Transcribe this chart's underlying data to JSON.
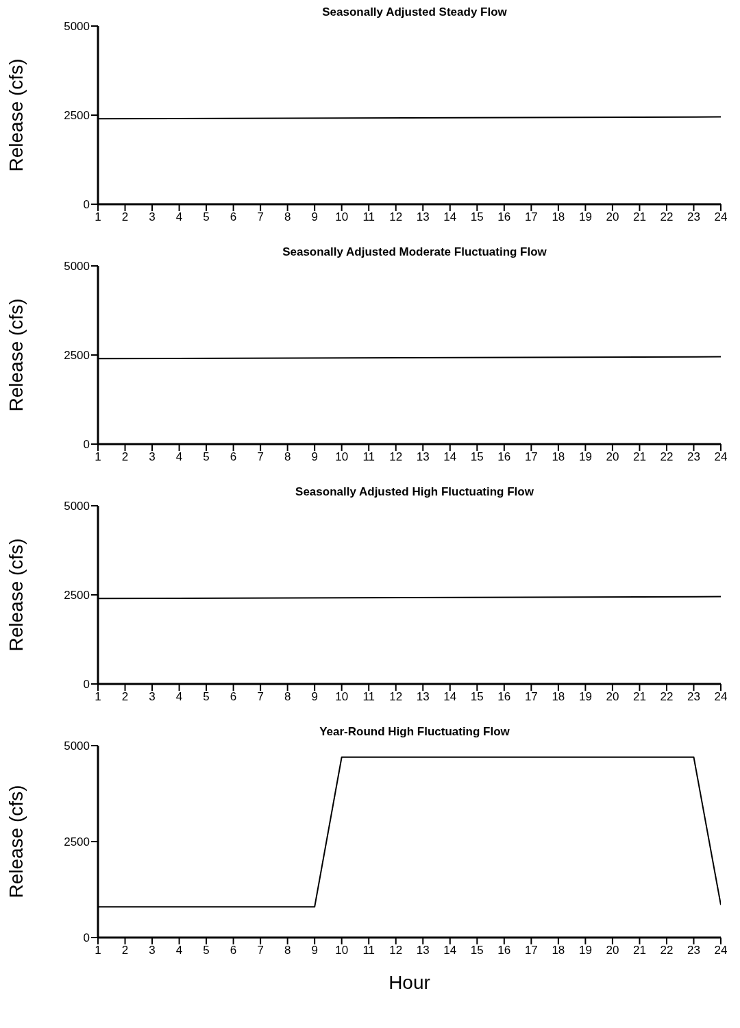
{
  "chart_data": [
    {
      "type": "line",
      "title": "Seasonally Adjusted Steady Flow",
      "ylabel": "Release (cfs)",
      "x": [
        1,
        24
      ],
      "series": [
        {
          "color": "#000000",
          "values": [
            2400,
            2450
          ]
        }
      ],
      "xlim": [
        1,
        24
      ],
      "xticks": [
        1,
        2,
        3,
        4,
        5,
        6,
        7,
        8,
        9,
        10,
        11,
        12,
        13,
        14,
        15,
        16,
        17,
        18,
        19,
        20,
        21,
        22,
        23,
        24
      ],
      "ylim": [
        0,
        5000
      ],
      "yticks": [
        0,
        2500,
        5000
      ],
      "grid": false,
      "legend": false,
      "marker": "none"
    },
    {
      "type": "line",
      "title": "Seasonally Adjusted Moderate Fluctuating Flow",
      "ylabel": "Release (cfs)",
      "x": [
        1,
        24
      ],
      "series": [
        {
          "color": "#000000",
          "values": [
            2400,
            2450
          ]
        }
      ],
      "xlim": [
        1,
        24
      ],
      "xticks": [
        1,
        2,
        3,
        4,
        5,
        6,
        7,
        8,
        9,
        10,
        11,
        12,
        13,
        14,
        15,
        16,
        17,
        18,
        19,
        20,
        21,
        22,
        23,
        24
      ],
      "ylim": [
        0,
        5000
      ],
      "yticks": [
        0,
        2500,
        5000
      ],
      "grid": false,
      "legend": false,
      "marker": "none"
    },
    {
      "type": "line",
      "title": "Seasonally Adjusted High Fluctuating Flow",
      "ylabel": "Release (cfs)",
      "x": [
        1,
        24
      ],
      "series": [
        {
          "color": "#000000",
          "values": [
            2400,
            2450
          ]
        }
      ],
      "xlim": [
        1,
        24
      ],
      "xticks": [
        1,
        2,
        3,
        4,
        5,
        6,
        7,
        8,
        9,
        10,
        11,
        12,
        13,
        14,
        15,
        16,
        17,
        18,
        19,
        20,
        21,
        22,
        23,
        24
      ],
      "ylim": [
        0,
        5000
      ],
      "yticks": [
        0,
        2500,
        5000
      ],
      "grid": false,
      "legend": false,
      "marker": "none"
    },
    {
      "type": "line",
      "title": "Year-Round High Fluctuating Flow",
      "ylabel": "Release (cfs)",
      "xlabel": "Hour",
      "x": [
        1,
        9,
        10,
        23,
        24
      ],
      "series": [
        {
          "color": "#000000",
          "values": [
            800,
            800,
            4700,
            4700,
            850
          ]
        }
      ],
      "xlim": [
        1,
        24
      ],
      "xticks": [
        1,
        2,
        3,
        4,
        5,
        6,
        7,
        8,
        9,
        10,
        11,
        12,
        13,
        14,
        15,
        16,
        17,
        18,
        19,
        20,
        21,
        22,
        23,
        24
      ],
      "ylim": [
        0,
        5000
      ],
      "yticks": [
        0,
        2500,
        5000
      ],
      "grid": false,
      "legend": false,
      "marker": "none"
    }
  ]
}
